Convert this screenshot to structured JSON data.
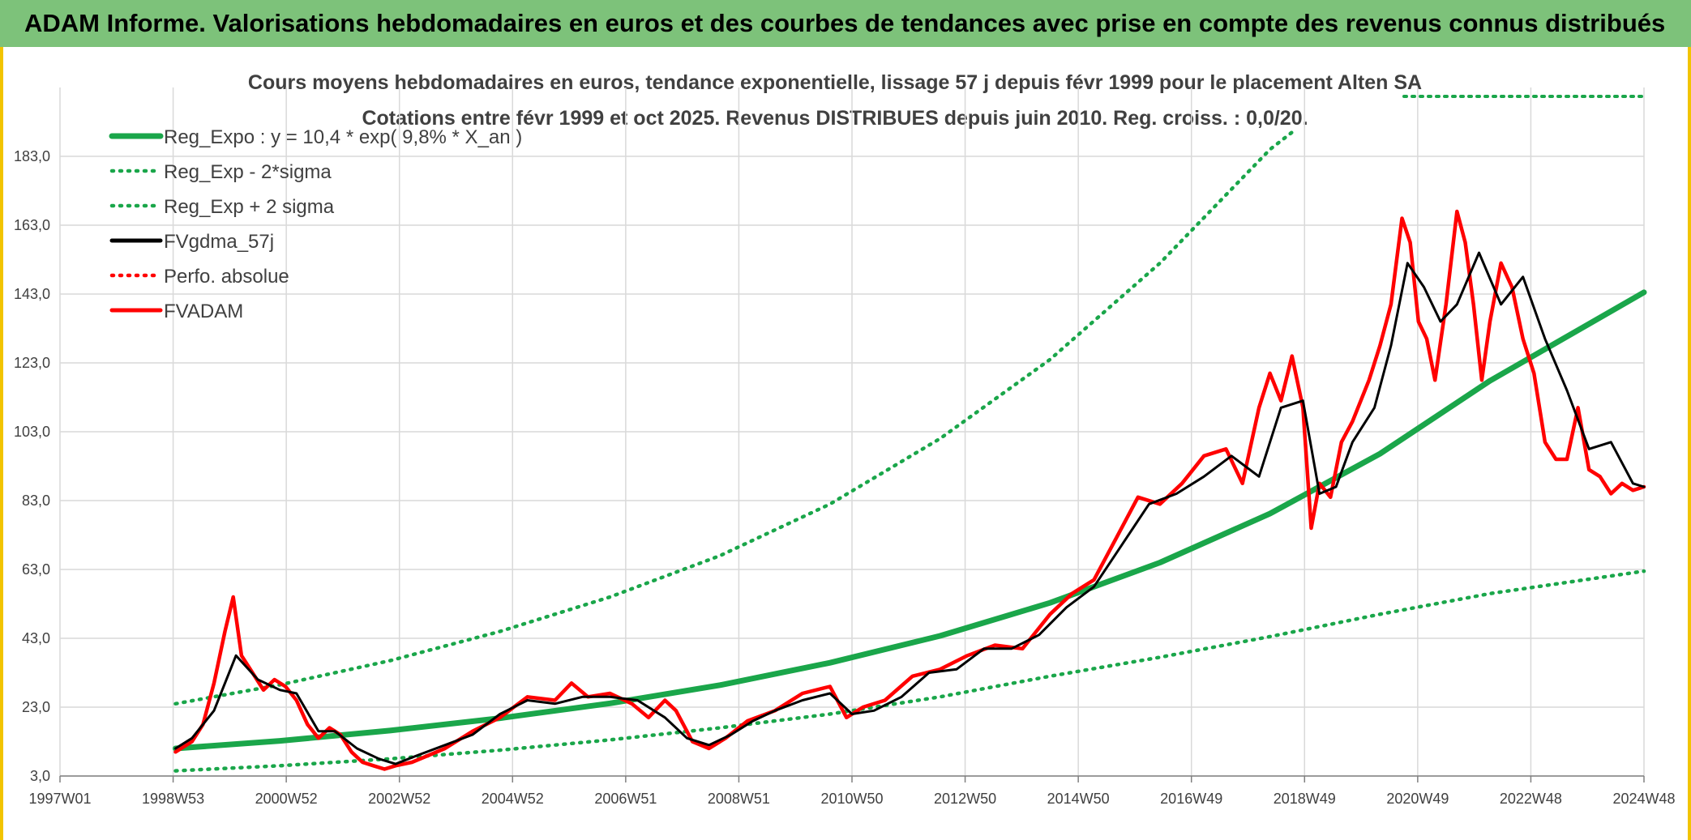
{
  "banner": "ADAM Informe. Valorisations hebdomadaires en euros et des courbes de tendances avec prise en compte des revenus connus distribués",
  "chart_data": {
    "type": "line",
    "title": "Cours moyens hebdomadaires en euros, tendance exponentielle, lissage 57 j depuis févr 1999 pour le placement Alten SA",
    "subtitle": "Cotations entre févr 1999 et oct 2025. Revenus DISTRIBUES depuis juin 2010. Reg. croiss. : 0,0/20.",
    "x_ticks": [
      "1997W01",
      "1998W53",
      "2000W52",
      "2002W52",
      "2004W52",
      "2006W51",
      "2008W51",
      "2010W50",
      "2012W50",
      "2014W50",
      "2016W49",
      "2018W49",
      "2020W49",
      "2022W48",
      "2024W48"
    ],
    "x_range": [
      1997.0,
      2025.8
    ],
    "y_ticks": [
      "3,0",
      "23,0",
      "43,0",
      "63,0",
      "83,0",
      "103,0",
      "123,0",
      "143,0",
      "163,0",
      "183,0"
    ],
    "ylim": [
      3,
      203
    ],
    "grid": true,
    "legend_position": "top-left",
    "colors": {
      "green": "#1aa64a",
      "black": "#000000",
      "red": "#ff0000"
    },
    "series": [
      {
        "name": "Reg_Expo : y = 10,4 * exp( 9,8% *  X_an )",
        "color": "#1aa64a",
        "style": "solid",
        "x": [
          1999.1,
          2001,
          2003,
          2005,
          2007,
          2009,
          2011,
          2013,
          2015,
          2017,
          2019,
          2021,
          2023,
          2025.8
        ],
        "y": [
          11.0,
          13.2,
          16.2,
          19.8,
          24.1,
          29.4,
          35.9,
          43.7,
          53.3,
          65.0,
          79.2,
          96.6,
          117.8,
          143.5
        ]
      },
      {
        "name": "Reg_Exp - 2*sigma",
        "color": "#1aa64a",
        "style": "dotted",
        "x": [
          1999.1,
          2001,
          2003,
          2005,
          2007,
          2009,
          2011,
          2013,
          2015,
          2017,
          2019,
          2021,
          2023,
          2025.8
        ],
        "y": [
          4.5,
          6.0,
          8.0,
          10.5,
          13.5,
          17.0,
          21.0,
          26.0,
          32.0,
          37.5,
          43.5,
          50.0,
          56.0,
          62.5
        ]
      },
      {
        "name": "Reg_Exp + 2 sigma",
        "color": "#1aa64a",
        "style": "dotted",
        "x": [
          1999.1,
          2001,
          2003,
          2005,
          2007,
          2009,
          2011,
          2013,
          2015,
          2017,
          2019,
          2019.4
        ],
        "y": [
          24.0,
          29.5,
          36.5,
          45.0,
          55.0,
          67.0,
          82.0,
          101.0,
          124.0,
          152.0,
          185.0,
          190.0
        ]
      },
      {
        "name": "FVgdma_57j",
        "color": "#000000",
        "style": "solid",
        "x": [
          1999.1,
          1999.4,
          1999.8,
          2000.2,
          2000.6,
          2001.0,
          2001.3,
          2001.7,
          2002.0,
          2002.4,
          2002.8,
          2003.1,
          2003.5,
          2004.0,
          2004.5,
          2005.0,
          2005.5,
          2006.0,
          2006.5,
          2007.0,
          2007.5,
          2008.0,
          2008.4,
          2008.8,
          2009.2,
          2009.6,
          2010.0,
          2010.5,
          2011.0,
          2011.4,
          2011.8,
          2012.3,
          2012.8,
          2013.3,
          2013.8,
          2014.3,
          2014.8,
          2015.3,
          2015.8,
          2016.3,
          2016.8,
          2017.3,
          2017.8,
          2018.3,
          2018.8,
          2019.2,
          2019.6,
          2019.9,
          2020.2,
          2020.5,
          2020.9,
          2021.2,
          2021.5,
          2021.8,
          2022.1,
          2022.4,
          2022.8,
          2023.2,
          2023.6,
          2024.0,
          2024.4,
          2024.8,
          2025.2,
          2025.6,
          2025.8
        ],
        "y": [
          11,
          14,
          22,
          38,
          31,
          28,
          27,
          16,
          16,
          11,
          8,
          6.5,
          9,
          12,
          15,
          21,
          25,
          24,
          26,
          26,
          25,
          20,
          14,
          12,
          15,
          19,
          22,
          25,
          27,
          21,
          22,
          26,
          33,
          34,
          40,
          40,
          44,
          52,
          58,
          70,
          82,
          85,
          90,
          96,
          90,
          110,
          112,
          85,
          87,
          100,
          110,
          128,
          152,
          145,
          135,
          140,
          155,
          140,
          148,
          130,
          115,
          98,
          100,
          88,
          87
        ]
      },
      {
        "name": "Perfo. absolue",
        "color": "#ff0000",
        "style": "dotted",
        "x": [],
        "y": []
      },
      {
        "name": "FVADAM",
        "color": "#ff0000",
        "style": "solid",
        "x": [
          1999.1,
          1999.4,
          1999.6,
          1999.8,
          2000.0,
          2000.15,
          2000.3,
          2000.5,
          2000.7,
          2000.9,
          2001.1,
          2001.3,
          2001.5,
          2001.7,
          2001.9,
          2002.1,
          2002.3,
          2002.5,
          2002.7,
          2002.9,
          2003.1,
          2003.4,
          2003.7,
          2004.0,
          2004.5,
          2005.0,
          2005.5,
          2006.0,
          2006.3,
          2006.6,
          2007.0,
          2007.4,
          2007.7,
          2008.0,
          2008.2,
          2008.5,
          2008.8,
          2009.1,
          2009.5,
          2010.0,
          2010.5,
          2011.0,
          2011.3,
          2011.6,
          2012.0,
          2012.5,
          2013.0,
          2013.5,
          2014.0,
          2014.5,
          2015.0,
          2015.4,
          2015.8,
          2016.2,
          2016.6,
          2017.0,
          2017.4,
          2017.8,
          2018.2,
          2018.5,
          2018.8,
          2019.0,
          2019.2,
          2019.4,
          2019.6,
          2019.75,
          2019.9,
          2020.1,
          2020.3,
          2020.5,
          2020.8,
          2021.0,
          2021.2,
          2021.4,
          2021.55,
          2021.7,
          2021.85,
          2022.0,
          2022.2,
          2022.4,
          2022.55,
          2022.7,
          2022.85,
          2023.0,
          2023.2,
          2023.4,
          2023.6,
          2023.8,
          2024.0,
          2024.2,
          2024.4,
          2024.6,
          2024.8,
          2025.0,
          2025.2,
          2025.4,
          2025.6,
          2025.8
        ],
        "y": [
          10,
          13,
          18,
          30,
          45,
          55,
          38,
          33,
          28,
          31,
          29,
          25,
          18,
          14,
          17,
          15,
          10,
          7,
          6,
          5,
          6,
          7,
          9,
          11,
          16,
          20,
          26,
          25,
          30,
          26,
          27,
          24,
          20,
          25,
          22,
          13,
          11,
          14,
          19,
          22,
          27,
          29,
          20,
          23,
          25,
          32,
          34,
          38,
          41,
          40,
          50,
          56,
          60,
          72,
          84,
          82,
          88,
          96,
          98,
          88,
          110,
          120,
          112,
          125,
          110,
          75,
          88,
          84,
          100,
          106,
          118,
          128,
          140,
          165,
          158,
          135,
          130,
          118,
          140,
          167,
          158,
          140,
          118,
          135,
          152,
          145,
          130,
          120,
          100,
          95,
          95,
          110,
          92,
          90,
          85,
          88,
          86,
          87
        ]
      }
    ]
  }
}
